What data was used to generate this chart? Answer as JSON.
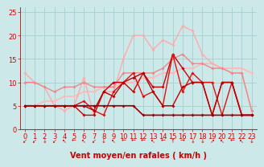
{
  "bg_color": "#cce8e8",
  "grid_color": "#99cccc",
  "xlabel": "Vent moyen/en rafales ( km/h )",
  "tick_color": "#cc0000",
  "xlim": [
    -0.5,
    23.5
  ],
  "ylim": [
    0,
    26
  ],
  "yticks": [
    0,
    5,
    10,
    15,
    20,
    25
  ],
  "xticks": [
    0,
    1,
    2,
    3,
    4,
    5,
    6,
    7,
    8,
    9,
    10,
    11,
    12,
    13,
    14,
    15,
    16,
    17,
    18,
    19,
    20,
    21,
    22,
    23
  ],
  "series": [
    {
      "comment": "light pink diagonal rising line (trend line)",
      "x": [
        0,
        1,
        2,
        3,
        4,
        5,
        6,
        7,
        8,
        9,
        10,
        11,
        12,
        13,
        14,
        15,
        16,
        17,
        18,
        19,
        20,
        21,
        22,
        23
      ],
      "y": [
        5,
        5,
        6,
        6,
        7,
        7,
        8,
        8,
        9,
        9,
        10,
        10,
        11,
        11,
        12,
        12,
        13,
        13,
        14,
        14,
        13,
        13,
        13,
        12
      ],
      "color": "#ffbbbb",
      "alpha": 1.0,
      "lw": 1.3,
      "marker": "D",
      "ms": 2.0
    },
    {
      "comment": "light pink wavy - highest peaks line",
      "x": [
        0,
        1,
        2,
        3,
        4,
        5,
        6,
        7,
        8,
        9,
        10,
        11,
        12,
        13,
        14,
        15,
        16,
        17,
        18,
        19,
        20,
        21,
        22,
        23
      ],
      "y": [
        12,
        10,
        9,
        5,
        4,
        5,
        11,
        3,
        8,
        8,
        15,
        20,
        20,
        17,
        19,
        18,
        22,
        21,
        16,
        14,
        13,
        12,
        12,
        4
      ],
      "color": "#ffaaaa",
      "alpha": 1.0,
      "lw": 1.0,
      "marker": "D",
      "ms": 2.0
    },
    {
      "comment": "medium pink gently rising",
      "x": [
        0,
        1,
        2,
        3,
        4,
        5,
        6,
        7,
        8,
        9,
        10,
        11,
        12,
        13,
        14,
        15,
        16,
        17,
        18,
        19,
        20,
        21,
        22,
        23
      ],
      "y": [
        10,
        10,
        9,
        8,
        9,
        9,
        10,
        9,
        9,
        9,
        12,
        12,
        12,
        12,
        13,
        15,
        16,
        14,
        14,
        13,
        13,
        12,
        12,
        4
      ],
      "color": "#ee8888",
      "alpha": 1.0,
      "lw": 1.0,
      "marker": "D",
      "ms": 2.0
    },
    {
      "comment": "dark red jagged line 1",
      "x": [
        0,
        1,
        2,
        3,
        4,
        5,
        6,
        7,
        8,
        9,
        10,
        11,
        12,
        13,
        14,
        15,
        16,
        17,
        18,
        19,
        20,
        21,
        22,
        23
      ],
      "y": [
        5,
        5,
        5,
        5,
        5,
        5,
        3,
        3,
        8,
        10,
        10,
        8,
        12,
        9,
        9,
        16,
        13,
        10,
        10,
        3,
        10,
        10,
        3,
        3
      ],
      "color": "#cc0000",
      "alpha": 1.0,
      "lw": 1.0,
      "marker": "D",
      "ms": 2.0
    },
    {
      "comment": "dark red jagged line 2",
      "x": [
        0,
        1,
        2,
        3,
        4,
        5,
        6,
        7,
        8,
        9,
        10,
        11,
        12,
        13,
        14,
        15,
        16,
        17,
        18,
        19,
        20,
        21,
        22,
        23
      ],
      "y": [
        5,
        5,
        5,
        5,
        5,
        5,
        6,
        4,
        3,
        8,
        10,
        12,
        7,
        8,
        5,
        16,
        8,
        12,
        10,
        10,
        3,
        10,
        3,
        3
      ],
      "color": "#dd1111",
      "alpha": 1.0,
      "lw": 1.0,
      "marker": "D",
      "ms": 2.0
    },
    {
      "comment": "dark red relatively flat bottom",
      "x": [
        0,
        1,
        2,
        3,
        4,
        5,
        6,
        7,
        8,
        9,
        10,
        11,
        12,
        13,
        14,
        15,
        16,
        17,
        18,
        19,
        20,
        21,
        22,
        23
      ],
      "y": [
        5,
        5,
        5,
        5,
        5,
        5,
        5,
        4,
        8,
        7,
        10,
        11,
        12,
        8,
        5,
        5,
        9,
        10,
        10,
        3,
        10,
        10,
        3,
        3
      ],
      "color": "#bb0000",
      "alpha": 1.0,
      "lw": 1.0,
      "marker": "D",
      "ms": 2.0
    },
    {
      "comment": "very dark red flat near bottom",
      "x": [
        0,
        1,
        2,
        3,
        4,
        5,
        6,
        7,
        8,
        9,
        10,
        11,
        12,
        13,
        14,
        15,
        16,
        17,
        18,
        19,
        20,
        21,
        22,
        23
      ],
      "y": [
        5,
        5,
        5,
        5,
        5,
        5,
        5,
        5,
        5,
        5,
        5,
        5,
        3,
        3,
        3,
        3,
        3,
        3,
        3,
        3,
        3,
        3,
        3,
        3
      ],
      "color": "#990000",
      "alpha": 1.0,
      "lw": 1.2,
      "marker": "D",
      "ms": 2.0
    }
  ],
  "wind_arrows": [
    "↙",
    "↙",
    "↓",
    "↙",
    "↖",
    "←",
    "↖",
    "↙",
    "↓",
    "↖",
    "←",
    "←",
    "←",
    "↖",
    "←",
    "↑",
    "→",
    "↓",
    "↓",
    "↗",
    "↖",
    "←",
    "↖",
    "↓"
  ],
  "fontsize_xlabel": 7,
  "fontsize_ticks": 6,
  "fontsize_arrow": 5
}
